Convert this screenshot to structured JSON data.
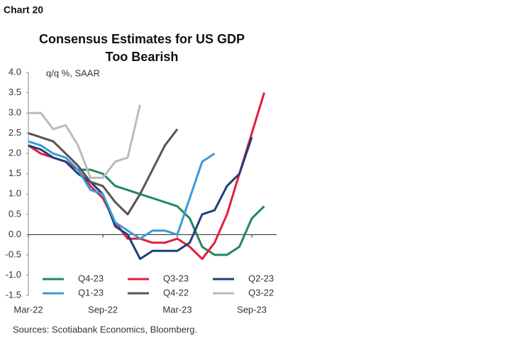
{
  "chart_label": "Chart 20",
  "chart_data": {
    "type": "line",
    "title": [
      "Consensus Estimates for US GDP",
      "Too Bearish"
    ],
    "ylabel": "q/q %, SAAR",
    "source": "Sources: Scotiabank Economics, Bloomberg.",
    "x": [
      "2022-03",
      "2022-04",
      "2022-05",
      "2022-06",
      "2022-07",
      "2022-08",
      "2022-09",
      "2022-10",
      "2022-11",
      "2022-12",
      "2023-01",
      "2023-02",
      "2023-03",
      "2023-04",
      "2023-05",
      "2023-06",
      "2023-07",
      "2023-08",
      "2023-09",
      "2023-10"
    ],
    "xlim": [
      "2022-03",
      "2023-11"
    ],
    "xticks": [
      {
        "value": "2022-03",
        "label": "Mar-22"
      },
      {
        "value": "2022-09",
        "label": "Sep-22"
      },
      {
        "value": "2023-03",
        "label": "Mar-23"
      },
      {
        "value": "2023-09",
        "label": "Sep-23"
      }
    ],
    "ylim": [
      -1.5,
      4.0
    ],
    "yticks": [
      {
        "value": 4,
        "label": "4.0"
      },
      3.5,
      {
        "value": 3,
        "label": "3.0"
      },
      2.5,
      {
        "value": 2,
        "label": "2.0"
      },
      1.5,
      {
        "value": 1,
        "label": "1.0"
      },
      0.5,
      {
        "value": 0,
        "label": "0.0"
      },
      -0.5,
      {
        "value": -1,
        "label": "-1.0"
      },
      -1.5
    ],
    "series": [
      {
        "name": "Q4-23",
        "color": "#1f8a5a",
        "values": [
          null,
          null,
          null,
          null,
          1.6,
          1.6,
          1.5,
          1.2,
          1.1,
          1.0,
          0.9,
          0.8,
          0.7,
          0.4,
          -0.3,
          -0.5,
          -0.5,
          -0.3,
          0.4,
          0.7
        ]
      },
      {
        "name": "Q3-23",
        "color": "#e31d3c",
        "values": [
          2.2,
          2.0,
          1.9,
          1.8,
          1.6,
          1.2,
          0.9,
          0.3,
          -0.1,
          -0.1,
          -0.2,
          -0.2,
          -0.1,
          -0.3,
          -0.6,
          -0.2,
          0.5,
          1.5,
          2.5,
          3.5
        ]
      },
      {
        "name": "Q2-23",
        "color": "#1f3f7a",
        "values": [
          2.2,
          2.1,
          1.9,
          1.8,
          1.5,
          1.3,
          1.0,
          0.2,
          0.0,
          -0.6,
          -0.4,
          -0.4,
          -0.4,
          -0.2,
          0.5,
          0.6,
          1.2,
          1.5,
          2.4,
          null
        ]
      },
      {
        "name": "Q1-23",
        "color": "#3a9bd5",
        "values": [
          2.3,
          2.2,
          2.0,
          1.9,
          1.6,
          1.1,
          1.0,
          0.3,
          0.1,
          -0.1,
          0.1,
          0.1,
          0.0,
          0.9,
          1.8,
          2.0,
          null,
          null,
          null,
          null
        ]
      },
      {
        "name": "Q4-22",
        "color": "#555555",
        "values": [
          2.5,
          2.4,
          2.3,
          2.0,
          1.7,
          1.3,
          1.2,
          0.8,
          0.5,
          1.0,
          1.6,
          2.2,
          2.6,
          null,
          null,
          null,
          null,
          null,
          null,
          null
        ]
      },
      {
        "name": "Q3-22",
        "color": "#bbbbbb",
        "values": [
          3.0,
          3.0,
          2.6,
          2.7,
          2.2,
          1.4,
          1.4,
          1.8,
          1.9,
          3.2,
          null,
          null,
          null,
          null,
          null,
          null,
          null,
          null,
          null,
          null
        ]
      }
    ]
  }
}
